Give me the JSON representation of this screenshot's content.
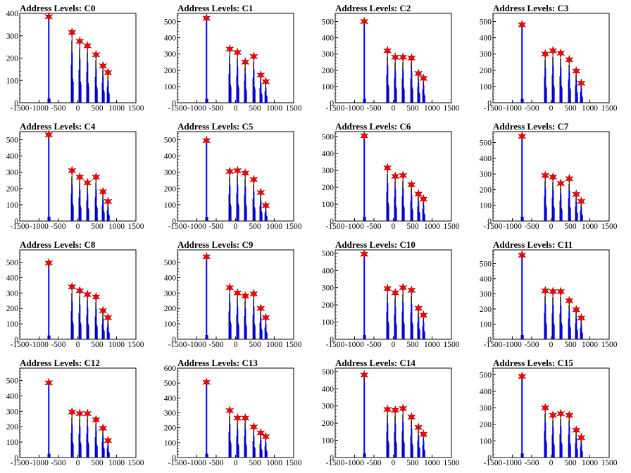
{
  "colors": {
    "hist": "#0000ff",
    "black_bars": "#000000",
    "marker": "#ff0000",
    "axis": "#000000"
  },
  "x_ticks": [
    "-1500",
    "-1000",
    "-500",
    "0",
    "500",
    "1000",
    "1500"
  ],
  "chart_data": [
    {
      "type": "bar",
      "title": "Address Levels: C0",
      "xlim": [
        -1500,
        1500
      ],
      "ylim": [
        0,
        400
      ],
      "y_ticks": [
        "0",
        "100",
        "200",
        "300",
        "400"
      ],
      "peaks": [
        {
          "x": -750,
          "y": 385
        },
        {
          "x": -150,
          "y": 315
        },
        {
          "x": 50,
          "y": 275
        },
        {
          "x": 250,
          "y": 255
        },
        {
          "x": 470,
          "y": 215
        },
        {
          "x": 650,
          "y": 165
        },
        {
          "x": 780,
          "y": 135
        }
      ]
    },
    {
      "type": "bar",
      "title": "Address Levels: C1",
      "xlim": [
        -1500,
        1500
      ],
      "ylim": [
        0,
        550
      ],
      "y_ticks": [
        "0",
        "100",
        "200",
        "300",
        "400",
        "500"
      ],
      "peaks": [
        {
          "x": -750,
          "y": 520
        },
        {
          "x": -150,
          "y": 330
        },
        {
          "x": 50,
          "y": 310
        },
        {
          "x": 250,
          "y": 250
        },
        {
          "x": 470,
          "y": 285
        },
        {
          "x": 650,
          "y": 170
        },
        {
          "x": 780,
          "y": 130
        }
      ]
    },
    {
      "type": "bar",
      "title": "Address Levels: C2",
      "xlim": [
        -1500,
        1500
      ],
      "ylim": [
        0,
        550
      ],
      "y_ticks": [
        "0",
        "100",
        "200",
        "300",
        "400",
        "500"
      ],
      "peaks": [
        {
          "x": -750,
          "y": 500
        },
        {
          "x": -150,
          "y": 320
        },
        {
          "x": 50,
          "y": 280
        },
        {
          "x": 250,
          "y": 280
        },
        {
          "x": 470,
          "y": 275
        },
        {
          "x": 650,
          "y": 180
        },
        {
          "x": 780,
          "y": 150
        }
      ]
    },
    {
      "type": "bar",
      "title": "Address Levels: C3",
      "xlim": [
        -1500,
        1500
      ],
      "ylim": [
        0,
        550
      ],
      "y_ticks": [
        "0",
        "100",
        "200",
        "300",
        "400",
        "500"
      ],
      "peaks": [
        {
          "x": -750,
          "y": 480
        },
        {
          "x": -150,
          "y": 300
        },
        {
          "x": 50,
          "y": 320
        },
        {
          "x": 250,
          "y": 305
        },
        {
          "x": 470,
          "y": 265
        },
        {
          "x": 650,
          "y": 195
        },
        {
          "x": 780,
          "y": 120
        }
      ]
    },
    {
      "type": "bar",
      "title": "Address Levels: C4",
      "xlim": [
        -1500,
        1500
      ],
      "ylim": [
        0,
        550
      ],
      "y_ticks": [
        "0",
        "100",
        "200",
        "300",
        "400",
        "500"
      ],
      "peaks": [
        {
          "x": -750,
          "y": 530
        },
        {
          "x": -150,
          "y": 310
        },
        {
          "x": 50,
          "y": 270
        },
        {
          "x": 250,
          "y": 235
        },
        {
          "x": 470,
          "y": 270
        },
        {
          "x": 650,
          "y": 180
        },
        {
          "x": 780,
          "y": 120
        }
      ]
    },
    {
      "type": "bar",
      "title": "Address Levels: C5",
      "xlim": [
        -1500,
        1500
      ],
      "ylim": [
        0,
        550
      ],
      "y_ticks": [
        "0",
        "100",
        "200",
        "300",
        "400",
        "500"
      ],
      "peaks": [
        {
          "x": -750,
          "y": 495
        },
        {
          "x": -150,
          "y": 305
        },
        {
          "x": 50,
          "y": 310
        },
        {
          "x": 250,
          "y": 295
        },
        {
          "x": 470,
          "y": 255
        },
        {
          "x": 650,
          "y": 175
        },
        {
          "x": 780,
          "y": 95
        }
      ]
    },
    {
      "type": "bar",
      "title": "Address Levels: C6",
      "xlim": [
        -1500,
        1500
      ],
      "ylim": [
        0,
        530
      ],
      "y_ticks": [
        "0",
        "100",
        "200",
        "300",
        "400",
        "500"
      ],
      "peaks": [
        {
          "x": -750,
          "y": 505
        },
        {
          "x": -150,
          "y": 315
        },
        {
          "x": 50,
          "y": 265
        },
        {
          "x": 250,
          "y": 270
        },
        {
          "x": 470,
          "y": 215
        },
        {
          "x": 650,
          "y": 160
        },
        {
          "x": 780,
          "y": 130
        }
      ]
    },
    {
      "type": "bar",
      "title": "Address Levels: C7",
      "xlim": [
        -1500,
        1500
      ],
      "ylim": [
        0,
        570
      ],
      "y_ticks": [
        "0",
        "100",
        "200",
        "300",
        "400",
        "500"
      ],
      "peaks": [
        {
          "x": -750,
          "y": 540
        },
        {
          "x": -150,
          "y": 290
        },
        {
          "x": 50,
          "y": 280
        },
        {
          "x": 250,
          "y": 240
        },
        {
          "x": 470,
          "y": 270
        },
        {
          "x": 650,
          "y": 170
        },
        {
          "x": 780,
          "y": 125
        }
      ]
    },
    {
      "type": "bar",
      "title": "Address Levels: C8",
      "xlim": [
        -1500,
        1500
      ],
      "ylim": [
        0,
        580
      ],
      "y_ticks": [
        "0",
        "100",
        "200",
        "300",
        "400",
        "500"
      ],
      "peaks": [
        {
          "x": -750,
          "y": 495
        },
        {
          "x": -150,
          "y": 340
        },
        {
          "x": 50,
          "y": 315
        },
        {
          "x": 250,
          "y": 290
        },
        {
          "x": 470,
          "y": 275
        },
        {
          "x": 650,
          "y": 185
        },
        {
          "x": 780,
          "y": 140
        }
      ]
    },
    {
      "type": "bar",
      "title": "Address Levels: C9",
      "xlim": [
        -1500,
        1500
      ],
      "ylim": [
        0,
        580
      ],
      "y_ticks": [
        "0",
        "100",
        "200",
        "300",
        "400",
        "500"
      ],
      "peaks": [
        {
          "x": -750,
          "y": 535
        },
        {
          "x": -150,
          "y": 335
        },
        {
          "x": 50,
          "y": 300
        },
        {
          "x": 250,
          "y": 280
        },
        {
          "x": 470,
          "y": 295
        },
        {
          "x": 650,
          "y": 200
        },
        {
          "x": 780,
          "y": 140
        }
      ]
    },
    {
      "type": "bar",
      "title": "Address Levels: C10",
      "xlim": [
        -1500,
        1500
      ],
      "ylim": [
        0,
        520
      ],
      "y_ticks": [
        "0",
        "100",
        "200",
        "300",
        "400",
        "500"
      ],
      "peaks": [
        {
          "x": -750,
          "y": 495
        },
        {
          "x": -150,
          "y": 295
        },
        {
          "x": 50,
          "y": 270
        },
        {
          "x": 250,
          "y": 300
        },
        {
          "x": 470,
          "y": 285
        },
        {
          "x": 650,
          "y": 180
        },
        {
          "x": 780,
          "y": 140
        }
      ]
    },
    {
      "type": "bar",
      "title": "Address Levels: C11",
      "xlim": [
        -1500,
        1500
      ],
      "ylim": [
        0,
        590
      ],
      "y_ticks": [
        "0",
        "100",
        "200",
        "300",
        "400",
        "500"
      ],
      "peaks": [
        {
          "x": -750,
          "y": 555
        },
        {
          "x": -150,
          "y": 320
        },
        {
          "x": 50,
          "y": 315
        },
        {
          "x": 250,
          "y": 315
        },
        {
          "x": 470,
          "y": 255
        },
        {
          "x": 650,
          "y": 195
        },
        {
          "x": 780,
          "y": 140
        }
      ]
    },
    {
      "type": "bar",
      "title": "Address Levels: C12",
      "xlim": [
        -1500,
        1500
      ],
      "ylim": [
        0,
        580
      ],
      "y_ticks": [
        "0",
        "100",
        "200",
        "300",
        "400",
        "500"
      ],
      "peaks": [
        {
          "x": -750,
          "y": 485
        },
        {
          "x": -150,
          "y": 295
        },
        {
          "x": 50,
          "y": 285
        },
        {
          "x": 250,
          "y": 285
        },
        {
          "x": 470,
          "y": 245
        },
        {
          "x": 650,
          "y": 190
        },
        {
          "x": 780,
          "y": 110
        }
      ]
    },
    {
      "type": "bar",
      "title": "Address Levels: C13",
      "xlim": [
        -1500,
        1500
      ],
      "ylim": [
        0,
        600
      ],
      "y_ticks": [
        "0",
        "100",
        "200",
        "300",
        "400",
        "500",
        "600"
      ],
      "peaks": [
        {
          "x": -750,
          "y": 505
        },
        {
          "x": -150,
          "y": 315
        },
        {
          "x": 50,
          "y": 265
        },
        {
          "x": 250,
          "y": 265
        },
        {
          "x": 470,
          "y": 205
        },
        {
          "x": 650,
          "y": 165
        },
        {
          "x": 780,
          "y": 140
        }
      ]
    },
    {
      "type": "bar",
      "title": "Address Levels: C14",
      "xlim": [
        -1500,
        1500
      ],
      "ylim": [
        0,
        520
      ],
      "y_ticks": [
        "0",
        "100",
        "200",
        "300",
        "400",
        "500"
      ],
      "peaks": [
        {
          "x": -750,
          "y": 480
        },
        {
          "x": -150,
          "y": 280
        },
        {
          "x": 50,
          "y": 275
        },
        {
          "x": 250,
          "y": 285
        },
        {
          "x": 470,
          "y": 235
        },
        {
          "x": 650,
          "y": 175
        },
        {
          "x": 780,
          "y": 135
        }
      ]
    },
    {
      "type": "bar",
      "title": "Address Levels: C15",
      "xlim": [
        -1500,
        1500
      ],
      "ylim": [
        0,
        540
      ],
      "y_ticks": [
        "0",
        "100",
        "200",
        "300",
        "400",
        "500"
      ],
      "peaks": [
        {
          "x": -750,
          "y": 490
        },
        {
          "x": -150,
          "y": 300
        },
        {
          "x": 50,
          "y": 255
        },
        {
          "x": 250,
          "y": 265
        },
        {
          "x": 470,
          "y": 255
        },
        {
          "x": 650,
          "y": 165
        },
        {
          "x": 780,
          "y": 120
        }
      ]
    }
  ]
}
